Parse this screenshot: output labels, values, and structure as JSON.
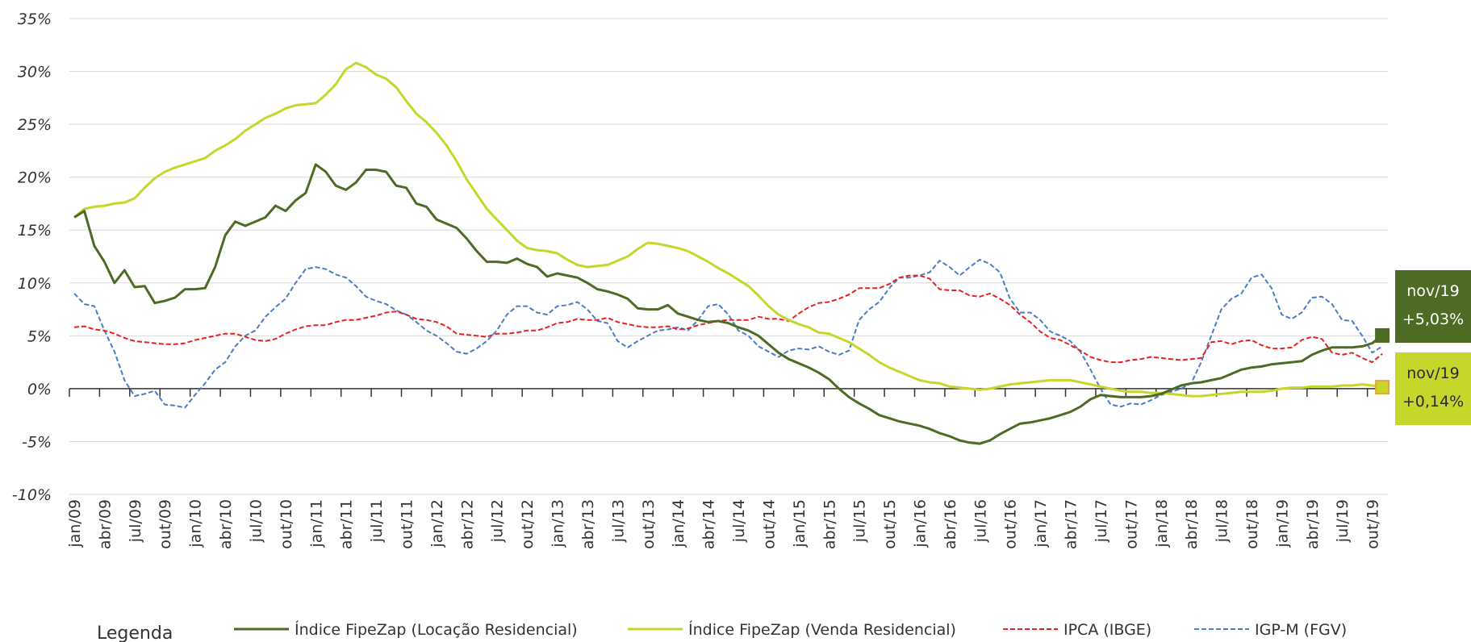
{
  "chart_data": {
    "type": "line",
    "categories": [
      "jan/09",
      null,
      null,
      "abr/09",
      null,
      null,
      "jul/09",
      null,
      null,
      "out/09",
      null,
      null,
      "jan/10",
      null,
      null,
      "abr/10",
      null,
      null,
      "jul/10",
      null,
      null,
      "out/10",
      null,
      null,
      "jan/11",
      null,
      null,
      "abr/11",
      null,
      null,
      "jul/11",
      null,
      null,
      "out/11",
      null,
      null,
      "jan/12",
      null,
      null,
      "abr/12",
      null,
      null,
      "jul/12",
      null,
      null,
      "out/12",
      null,
      null,
      "jan/13",
      null,
      null,
      "abr/13",
      null,
      null,
      "jul/13",
      null,
      null,
      "out/13",
      null,
      null,
      "jan/14",
      null,
      null,
      "abr/14",
      null,
      null,
      "jul/14",
      null,
      null,
      "out/14",
      null,
      null,
      "jan/15",
      null,
      null,
      "abr/15",
      null,
      null,
      "jul/15",
      null,
      null,
      "out/15",
      null,
      null,
      "jan/16",
      null,
      null,
      "abr/16",
      null,
      null,
      "jul/16",
      null,
      null,
      "out/16",
      null,
      null,
      "jan/17",
      null,
      null,
      "abr/17",
      null,
      null,
      "jul/17",
      null,
      null,
      "out/17",
      null,
      null,
      "jan/18",
      null,
      null,
      "abr/18",
      null,
      null,
      "jul/18",
      null,
      null,
      "out/18",
      null,
      null,
      "jan/19",
      null,
      null,
      "abr/19",
      null,
      null,
      "jul/19",
      null,
      null,
      "out/19",
      null
    ],
    "series": [
      {
        "name": "Índice FipeZap (Locação Residencial)",
        "color": "#4e6b26",
        "dashed": false,
        "end_label": {
          "date": "nov/19",
          "text": "+5,03%",
          "box_color": "#4e6b26",
          "text_color": "#ffffff",
          "marker_border": "#4e6b26"
        },
        "values": [
          16.2,
          16.8,
          13.5,
          12,
          10,
          11.2,
          9.6,
          9.7,
          8.1,
          8.3,
          8.6,
          9.4,
          9.4,
          9.5,
          11.5,
          14.5,
          15.8,
          15.4,
          15.8,
          16.2,
          17.3,
          16.8,
          17.8,
          18.5,
          21.2,
          20.5,
          19.2,
          18.8,
          19.5,
          20.7,
          20.7,
          20.5,
          19.2,
          19.0,
          17.5,
          17.2,
          16.0,
          15.6,
          15.2,
          14.2,
          13.0,
          12.0,
          12.0,
          11.9,
          12.3,
          11.8,
          11.5,
          10.6,
          10.9,
          10.7,
          10.5,
          10.0,
          9.4,
          9.2,
          8.9,
          8.5,
          7.6,
          7.5,
          7.5,
          7.9,
          7.1,
          6.8,
          6.5,
          6.3,
          6.4,
          6.2,
          5.8,
          5.5,
          5.0,
          4.2,
          3.4,
          2.8,
          2.4,
          2.0,
          1.5,
          0.9,
          0,
          -0.8,
          -1.4,
          -1.9,
          -2.5,
          -2.8,
          -3.1,
          -3.3,
          -3.5,
          -3.8,
          -4.2,
          -4.5,
          -4.9,
          -5.1,
          -5.2,
          -4.9,
          -4.3,
          -3.8,
          -3.3,
          -3.2,
          -3.0,
          -2.8,
          -2.5,
          -2.2,
          -1.7,
          -1.0,
          -0.6,
          -0.7,
          -0.8,
          -0.8,
          -0.8,
          -0.7,
          -0.5,
          -0.1,
          0.3,
          0.5,
          0.6,
          0.8,
          1.0,
          1.4,
          1.8,
          2.0,
          2.1,
          2.3,
          2.4,
          2.5,
          2.6,
          3.2,
          3.6,
          3.9,
          3.9,
          3.9,
          4.0,
          4.3,
          5.03
        ]
      },
      {
        "name": "Índice FipeZap (Venda Residencial)",
        "color": "#c6d62a",
        "dashed": false,
        "end_label": {
          "date": "nov/19",
          "text": "+0,14%",
          "box_color": "#c6d62a",
          "text_color": "#2b2b2b",
          "marker_border": "#e8a33a"
        },
        "values": [
          16.2,
          17.0,
          17.2,
          17.3,
          17.5,
          17.6,
          18.0,
          19.0,
          19.9,
          20.5,
          20.9,
          21.2,
          21.5,
          21.8,
          22.5,
          23.0,
          23.6,
          24.4,
          25.0,
          25.6,
          26.0,
          26.5,
          26.8,
          26.9,
          27.0,
          27.8,
          28.8,
          30.2,
          30.8,
          30.4,
          29.7,
          29.3,
          28.5,
          27.2,
          26.0,
          25.2,
          24.2,
          23.0,
          21.5,
          19.8,
          18.4,
          17.0,
          16.0,
          15.0,
          14.0,
          13.3,
          13.1,
          13.0,
          12.8,
          12.2,
          11.7,
          11.5,
          11.6,
          11.7,
          12.1,
          12.5,
          13.2,
          13.8,
          13.7,
          13.5,
          13.3,
          13.0,
          12.5,
          12.0,
          11.4,
          10.9,
          10.3,
          9.7,
          8.8,
          7.8,
          7.0,
          6.5,
          6.1,
          5.8,
          5.3,
          5.2,
          4.8,
          4.4,
          3.8,
          3.2,
          2.5,
          2.0,
          1.6,
          1.2,
          0.8,
          0.6,
          0.5,
          0.2,
          0.1,
          0.0,
          -0.1,
          0.0,
          0.2,
          0.4,
          0.5,
          0.6,
          0.7,
          0.8,
          0.8,
          0.8,
          0.6,
          0.4,
          0.2,
          0.0,
          -0.2,
          -0.3,
          -0.3,
          -0.4,
          -0.4,
          -0.5,
          -0.6,
          -0.7,
          -0.7,
          -0.6,
          -0.5,
          -0.4,
          -0.3,
          -0.3,
          -0.3,
          -0.2,
          0.0,
          0.1,
          0.1,
          0.2,
          0.2,
          0.2,
          0.3,
          0.3,
          0.4,
          0.3,
          0.14
        ]
      },
      {
        "name": "IPCA (IBGE)",
        "color": "#e82020",
        "dashed": true,
        "values": [
          5.8,
          5.9,
          5.6,
          5.5,
          5.2,
          4.8,
          4.5,
          4.4,
          4.3,
          4.2,
          4.2,
          4.3,
          4.6,
          4.8,
          5.0,
          5.2,
          5.2,
          4.9,
          4.6,
          4.5,
          4.7,
          5.2,
          5.6,
          5.9,
          6.0,
          6.0,
          6.3,
          6.5,
          6.5,
          6.7,
          6.9,
          7.2,
          7.3,
          7.0,
          6.6,
          6.5,
          6.3,
          5.9,
          5.2,
          5.1,
          5.0,
          4.9,
          5.2,
          5.2,
          5.3,
          5.5,
          5.5,
          5.8,
          6.2,
          6.3,
          6.6,
          6.5,
          6.5,
          6.7,
          6.3,
          6.1,
          5.9,
          5.8,
          5.8,
          5.9,
          5.6,
          5.7,
          6.0,
          6.2,
          6.4,
          6.5,
          6.5,
          6.5,
          6.8,
          6.6,
          6.6,
          6.4,
          7.1,
          7.7,
          8.1,
          8.2,
          8.5,
          8.9,
          9.5,
          9.5,
          9.5,
          9.9,
          10.5,
          10.7,
          10.7,
          10.4,
          9.4,
          9.3,
          9.3,
          8.8,
          8.7,
          9.0,
          8.5,
          7.9,
          7.0,
          6.3,
          5.4,
          4.8,
          4.6,
          4.1,
          3.6,
          3.0,
          2.7,
          2.5,
          2.5,
          2.7,
          2.8,
          3.0,
          2.9,
          2.8,
          2.7,
          2.8,
          2.9,
          4.4,
          4.5,
          4.2,
          4.5,
          4.6,
          4.1,
          3.8,
          3.8,
          3.9,
          4.6,
          4.9,
          4.7,
          3.4,
          3.2,
          3.4,
          2.9,
          2.5,
          3.3
        ]
      },
      {
        "name": "IGP-M (FGV)",
        "color": "#4a7ec4",
        "dashed": true,
        "values": [
          9.0,
          8.0,
          7.8,
          5.5,
          3.5,
          0.8,
          -0.7,
          -0.5,
          -0.2,
          -1.5,
          -1.6,
          -1.8,
          -0.6,
          0.5,
          1.8,
          2.5,
          4.0,
          5.0,
          5.5,
          6.8,
          7.7,
          8.5,
          10.0,
          11.3,
          11.5,
          11.3,
          10.8,
          10.5,
          9.7,
          8.7,
          8.3,
          8.0,
          7.4,
          7.0,
          6.3,
          5.5,
          5.0,
          4.3,
          3.5,
          3.3,
          3.8,
          4.5,
          5.5,
          7.0,
          7.8,
          7.8,
          7.2,
          7.0,
          7.8,
          7.9,
          8.2,
          7.5,
          6.4,
          6.2,
          4.5,
          3.9,
          4.5,
          5.0,
          5.5,
          5.6,
          5.8,
          5.5,
          6.5,
          7.8,
          8.0,
          7.0,
          5.5,
          5.0,
          4.0,
          3.5,
          3.0,
          3.6,
          3.8,
          3.7,
          4.0,
          3.5,
          3.2,
          3.6,
          6.5,
          7.5,
          8.2,
          9.5,
          10.5,
          10.5,
          10.7,
          11.0,
          12.1,
          11.5,
          10.7,
          11.5,
          12.2,
          11.8,
          11.0,
          8.5,
          7.2,
          7.2,
          6.5,
          5.4,
          5.0,
          4.5,
          3.5,
          1.8,
          0,
          -1.5,
          -1.7,
          -1.4,
          -1.5,
          -1.1,
          -0.6,
          -0.3,
          0,
          0.5,
          2.5,
          5.0,
          7.5,
          8.5,
          9.0,
          10.5,
          10.8,
          9.5,
          7.0,
          6.6,
          7.2,
          8.6,
          8.7,
          8.0,
          6.5,
          6.4,
          5.0,
          3.4,
          4.0
        ]
      }
    ],
    "ylim": [
      -10,
      35
    ],
    "yticks": [
      {
        "value": -10,
        "label": "-10%"
      },
      {
        "value": -5,
        "label": "-5%"
      },
      {
        "value": 0,
        "label": "0%"
      },
      {
        "value": 5,
        "label": "5%"
      },
      {
        "value": 10,
        "label": "10%"
      },
      {
        "value": 15,
        "label": "15%"
      },
      {
        "value": 20,
        "label": "20%"
      },
      {
        "value": 25,
        "label": "25%"
      },
      {
        "value": 30,
        "label": "30%"
      },
      {
        "value": 35,
        "label": "35%"
      }
    ],
    "grid": true,
    "legend_title": "Legenda",
    "legend_position": "bottom"
  }
}
